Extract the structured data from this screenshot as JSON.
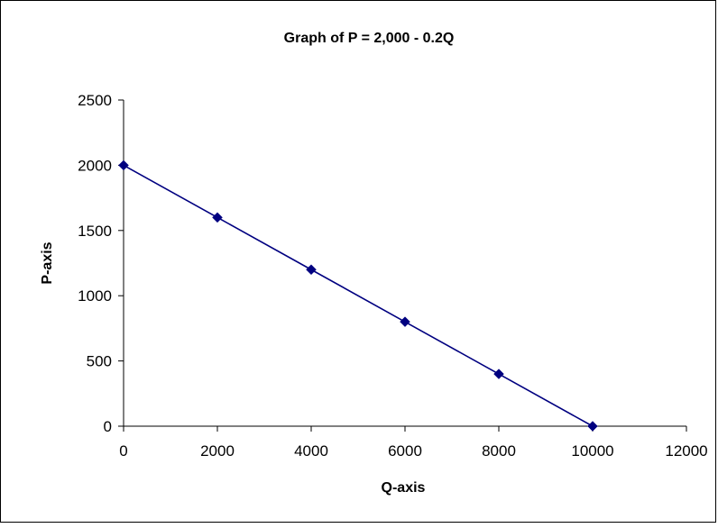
{
  "chart_data": {
    "type": "line",
    "title": "Graph of P = 2,000 - 0.2Q",
    "xlabel": "Q-axis",
    "ylabel": "P-axis",
    "xlim": [
      0,
      12000
    ],
    "ylim": [
      0,
      2500
    ],
    "x_ticks": [
      0,
      2000,
      4000,
      6000,
      8000,
      10000,
      12000
    ],
    "y_ticks": [
      0,
      500,
      1000,
      1500,
      2000,
      2500
    ],
    "x_tick_labels": [
      "0",
      "2000",
      "4000",
      "6000",
      "8000",
      "10000",
      "12000"
    ],
    "y_tick_labels": [
      "0",
      "500",
      "1000",
      "1500",
      "2000",
      "2500"
    ],
    "grid": false,
    "legend": "none",
    "marker": "diamond",
    "series": [
      {
        "x": [
          0,
          2000,
          4000,
          6000,
          8000,
          10000
        ],
        "y": [
          2000,
          1600,
          1200,
          800,
          400,
          0
        ]
      }
    ],
    "colors": {
      "series_line": "#000080",
      "series_marker": "#000080",
      "axis": "#000000",
      "frame": "#000000"
    }
  }
}
